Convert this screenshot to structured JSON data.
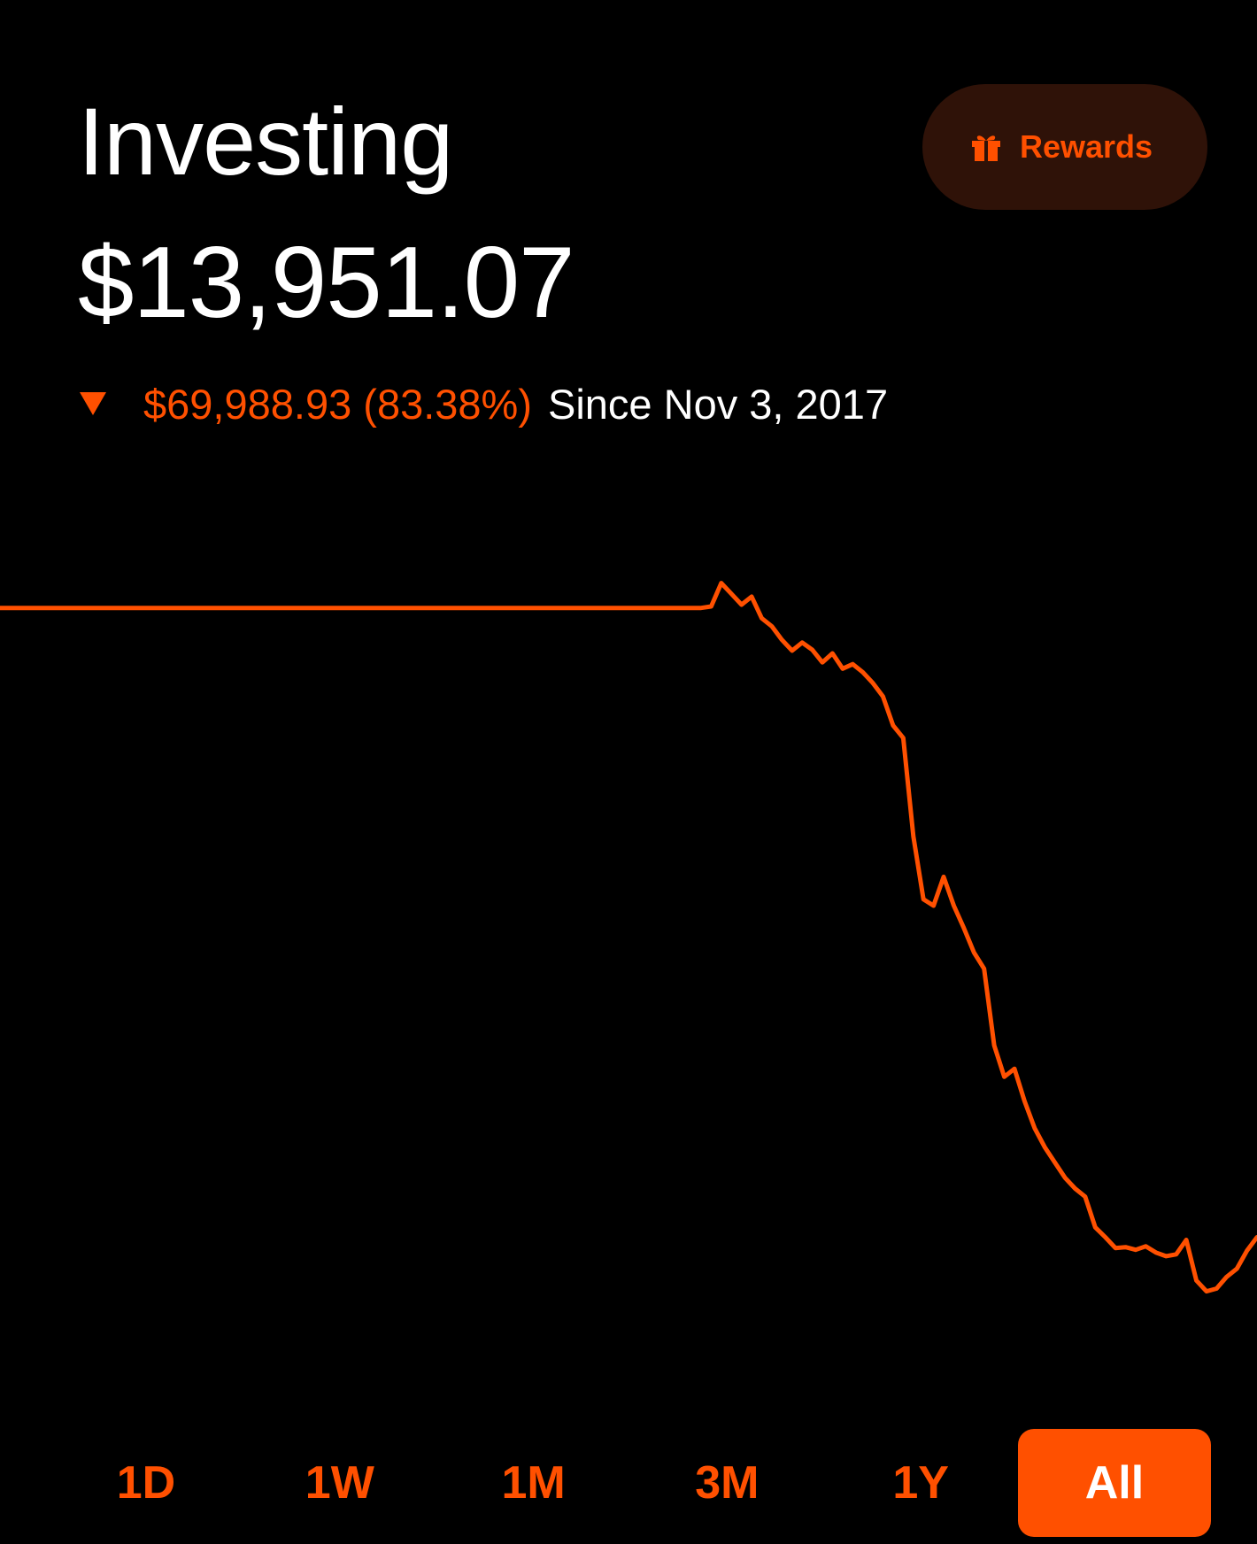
{
  "header": {
    "title": "Investing",
    "balance": "$13,951.07",
    "change": {
      "direction": "down",
      "value": "$69,988.93 (83.38%)",
      "since": "Since Nov 3, 2017"
    },
    "rewards": {
      "label": "Rewards",
      "icon": "gift-icon"
    }
  },
  "colors": {
    "accent": "#ff5000",
    "background": "#000000",
    "text": "#ffffff",
    "rewards_bg": "#2f1208"
  },
  "chart_data": {
    "type": "line",
    "series": [
      {
        "values": [
          83940,
          83940,
          83940,
          83940,
          83940,
          83940,
          83940,
          83940,
          83940,
          83940,
          83940,
          83940,
          83940,
          83940,
          83940,
          83940,
          83940,
          83940,
          83940,
          83940,
          83940,
          83940,
          83940,
          83940,
          83940,
          83940,
          83940,
          83940,
          83940,
          83940,
          83940,
          83940,
          83940,
          83940,
          83940,
          84100,
          86700,
          85500,
          84300,
          85200,
          82800,
          81900,
          80400,
          79200,
          80100,
          79300,
          77900,
          78900,
          77200,
          77700,
          76800,
          75600,
          74100,
          70900,
          69500,
          58600,
          51600,
          50900,
          54100,
          50900,
          48400,
          45700,
          43900,
          35400,
          31900,
          32800,
          29200,
          26200,
          24100,
          22400,
          20700,
          19500,
          18600,
          15200,
          14100,
          12900,
          13000,
          12700,
          13100,
          12400,
          12000,
          12200,
          13800,
          9300,
          8100,
          8400,
          9700,
          10600,
          12600,
          14100
        ]
      }
    ],
    "ylim": [
      0,
      90000
    ],
    "line_color": "#ff5000",
    "grid": false
  },
  "ranges": {
    "tabs": [
      "1D",
      "1W",
      "1M",
      "3M",
      "1Y",
      "All"
    ],
    "selected": "All"
  }
}
